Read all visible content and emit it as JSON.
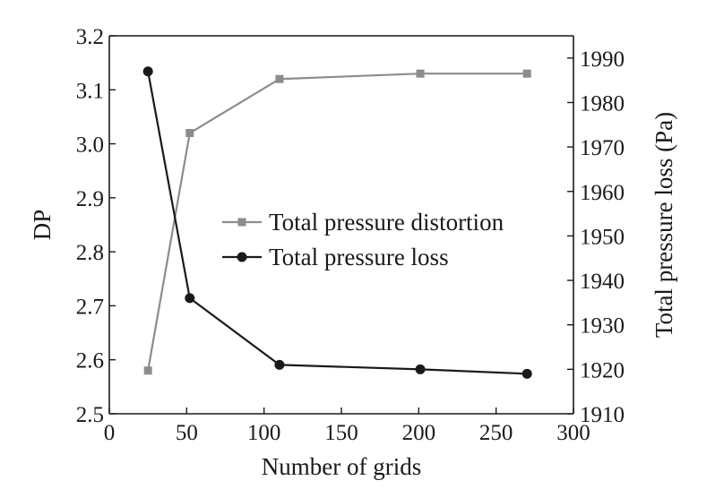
{
  "chart_data": {
    "type": "line",
    "xlabel": "Number of grids",
    "ylabel_left": "DP",
    "ylabel_right": "Total pressure loss (Pa)",
    "xlim": [
      0,
      300
    ],
    "ylim_left": [
      2.5,
      3.2
    ],
    "ylim_right": [
      1910,
      1995
    ],
    "x_ticks": [
      "0",
      "50",
      "100",
      "150",
      "200",
      "250",
      "300"
    ],
    "y_left_ticks": [
      "2.5",
      "2.6",
      "2.7",
      "2.8",
      "2.9",
      "3.0",
      "3.1",
      "3.2"
    ],
    "y_right_ticks": [
      "1910",
      "1920",
      "1930",
      "1940",
      "1950",
      "1960",
      "1970",
      "1980",
      "1990"
    ],
    "legend_position": "center-right",
    "grid": false,
    "series": [
      {
        "name": "Total pressure distortion",
        "axis": "left",
        "marker": "square",
        "color": "#8c8c8c",
        "x": [
          25,
          52,
          110,
          201,
          270
        ],
        "y": [
          2.58,
          3.02,
          3.12,
          3.13,
          3.13
        ]
      },
      {
        "name": "Total pressure loss",
        "axis": "right",
        "marker": "circle",
        "color": "#1a1a1a",
        "x": [
          25,
          52,
          110,
          201,
          270
        ],
        "y": [
          1987,
          1936,
          1921,
          1920,
          1919
        ]
      }
    ]
  }
}
